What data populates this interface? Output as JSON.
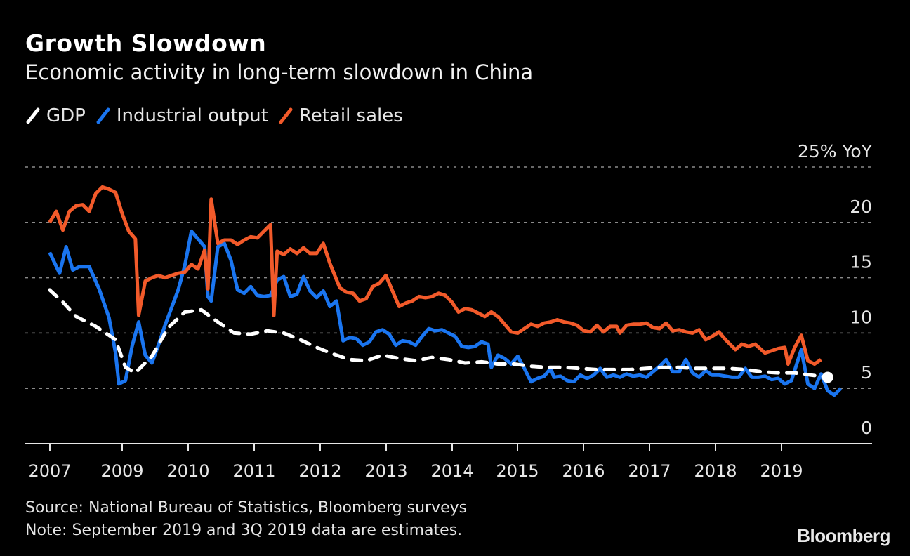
{
  "header": {
    "title": "Growth Slowdown",
    "subtitle": "Economic activity in long-term slowdown in China"
  },
  "legend": [
    {
      "label": "GDP",
      "color": "#ffffff"
    },
    {
      "label": "Industrial output",
      "color": "#1a75f0"
    },
    {
      "label": "Retail sales",
      "color": "#f25a2a"
    }
  ],
  "footer": {
    "source": "Source: National Bureau of Statistics, Bloomberg surveys",
    "note": "Note: September 2019 and 3Q 2019 data are estimates.",
    "brand": "Bloomberg"
  },
  "chart_data": {
    "type": "line",
    "title": "Growth Slowdown",
    "subtitle": "Economic activity in long-term slowdown in China",
    "xlabel": "",
    "ylabel": "% YoY",
    "y_unit_label": "25% YoY",
    "ylim": [
      0,
      25
    ],
    "yticks": [
      0,
      5,
      10,
      15,
      20,
      25
    ],
    "ytick_labels": [
      "0",
      "5",
      "10",
      "15",
      "20",
      "25% YoY"
    ],
    "xtick_labels": [
      "2007",
      "2009",
      "2010",
      "2011",
      "2012",
      "2013",
      "2014",
      "2015",
      "2016",
      "2017",
      "2018",
      "2019"
    ],
    "xtick_years": [
      2007.9,
      2009,
      2010,
      2011,
      2012,
      2013,
      2014,
      2015,
      2016,
      2017,
      2018,
      2019
    ],
    "grid": true,
    "legend_position": "top-left",
    "y_axis_side": "right",
    "series": [
      {
        "name": "GDP",
        "color": "#ffffff",
        "style": "dashed",
        "points": [
          [
            2007.9,
            13.9
          ],
          [
            2008.1,
            12.8
          ],
          [
            2008.3,
            11.5
          ],
          [
            2008.6,
            10.6
          ],
          [
            2008.9,
            9.4
          ],
          [
            2009.05,
            6.9
          ],
          [
            2009.2,
            6.4
          ],
          [
            2009.45,
            7.9
          ],
          [
            2009.7,
            10.5
          ],
          [
            2009.95,
            11.9
          ],
          [
            2010.2,
            12.1
          ],
          [
            2010.45,
            11.0
          ],
          [
            2010.7,
            10.0
          ],
          [
            2010.95,
            9.9
          ],
          [
            2011.2,
            10.2
          ],
          [
            2011.45,
            10.0
          ],
          [
            2011.7,
            9.4
          ],
          [
            2011.95,
            8.7
          ],
          [
            2012.2,
            8.1
          ],
          [
            2012.45,
            7.6
          ],
          [
            2012.7,
            7.5
          ],
          [
            2012.95,
            8.0
          ],
          [
            2013.2,
            7.7
          ],
          [
            2013.45,
            7.5
          ],
          [
            2013.7,
            7.8
          ],
          [
            2013.95,
            7.6
          ],
          [
            2014.2,
            7.3
          ],
          [
            2014.45,
            7.4
          ],
          [
            2014.7,
            7.2
          ],
          [
            2014.95,
            7.2
          ],
          [
            2015.2,
            7.0
          ],
          [
            2015.45,
            6.9
          ],
          [
            2015.7,
            6.9
          ],
          [
            2015.95,
            6.8
          ],
          [
            2016.2,
            6.7
          ],
          [
            2016.45,
            6.7
          ],
          [
            2016.7,
            6.7
          ],
          [
            2016.95,
            6.8
          ],
          [
            2017.2,
            6.9
          ],
          [
            2017.45,
            6.9
          ],
          [
            2017.7,
            6.8
          ],
          [
            2017.95,
            6.8
          ],
          [
            2018.2,
            6.8
          ],
          [
            2018.45,
            6.7
          ],
          [
            2018.7,
            6.5
          ],
          [
            2018.95,
            6.4
          ],
          [
            2019.2,
            6.4
          ],
          [
            2019.45,
            6.2
          ],
          [
            2019.7,
            6.0
          ]
        ]
      },
      {
        "name": "Industrial output",
        "color": "#1a75f0",
        "style": "solid",
        "points": [
          [
            2007.9,
            17.3
          ],
          [
            2008.05,
            15.4
          ],
          [
            2008.15,
            17.8
          ],
          [
            2008.25,
            15.7
          ],
          [
            2008.35,
            16.0
          ],
          [
            2008.5,
            16.0
          ],
          [
            2008.65,
            14.0
          ],
          [
            2008.8,
            11.4
          ],
          [
            2008.9,
            8.2
          ],
          [
            2008.95,
            5.4
          ],
          [
            2009.05,
            5.7
          ],
          [
            2009.15,
            8.8
          ],
          [
            2009.25,
            11.0
          ],
          [
            2009.35,
            8.0
          ],
          [
            2009.45,
            7.3
          ],
          [
            2009.55,
            8.9
          ],
          [
            2009.65,
            10.7
          ],
          [
            2009.75,
            12.3
          ],
          [
            2009.85,
            13.9
          ],
          [
            2009.95,
            16.1
          ],
          [
            2010.05,
            19.2
          ],
          [
            2010.15,
            18.5
          ],
          [
            2010.25,
            17.8
          ],
          [
            2010.3,
            13.3
          ],
          [
            2010.35,
            12.9
          ],
          [
            2010.45,
            17.8
          ],
          [
            2010.55,
            18.1
          ],
          [
            2010.65,
            16.6
          ],
          [
            2010.75,
            13.9
          ],
          [
            2010.85,
            13.6
          ],
          [
            2010.95,
            14.2
          ],
          [
            2011.05,
            13.4
          ],
          [
            2011.15,
            13.3
          ],
          [
            2011.25,
            13.4
          ],
          [
            2011.35,
            14.8
          ],
          [
            2011.45,
            15.1
          ],
          [
            2011.55,
            13.3
          ],
          [
            2011.65,
            13.5
          ],
          [
            2011.75,
            15.1
          ],
          [
            2011.85,
            13.8
          ],
          [
            2011.95,
            13.2
          ],
          [
            2012.05,
            13.8
          ],
          [
            2012.15,
            12.4
          ],
          [
            2012.25,
            12.9
          ],
          [
            2012.35,
            9.3
          ],
          [
            2012.45,
            9.6
          ],
          [
            2012.55,
            9.5
          ],
          [
            2012.65,
            8.9
          ],
          [
            2012.75,
            9.2
          ],
          [
            2012.85,
            10.1
          ],
          [
            2012.95,
            10.3
          ],
          [
            2013.05,
            9.9
          ],
          [
            2013.15,
            8.9
          ],
          [
            2013.25,
            9.3
          ],
          [
            2013.35,
            9.2
          ],
          [
            2013.45,
            8.9
          ],
          [
            2013.55,
            9.7
          ],
          [
            2013.65,
            10.4
          ],
          [
            2013.75,
            10.2
          ],
          [
            2013.85,
            10.3
          ],
          [
            2013.95,
            10.0
          ],
          [
            2014.05,
            9.7
          ],
          [
            2014.15,
            8.8
          ],
          [
            2014.25,
            8.7
          ],
          [
            2014.35,
            8.8
          ],
          [
            2014.45,
            9.2
          ],
          [
            2014.55,
            9.0
          ],
          [
            2014.6,
            6.9
          ],
          [
            2014.7,
            8.0
          ],
          [
            2014.8,
            7.7
          ],
          [
            2014.9,
            7.2
          ],
          [
            2015.0,
            7.9
          ],
          [
            2015.1,
            6.8
          ],
          [
            2015.2,
            5.6
          ],
          [
            2015.3,
            5.9
          ],
          [
            2015.4,
            6.1
          ],
          [
            2015.5,
            6.8
          ],
          [
            2015.55,
            6.0
          ],
          [
            2015.65,
            6.1
          ],
          [
            2015.75,
            5.7
          ],
          [
            2015.85,
            5.6
          ],
          [
            2015.95,
            6.2
          ],
          [
            2016.05,
            5.9
          ],
          [
            2016.15,
            6.2
          ],
          [
            2016.25,
            6.8
          ],
          [
            2016.35,
            6.0
          ],
          [
            2016.45,
            6.2
          ],
          [
            2016.55,
            6.0
          ],
          [
            2016.65,
            6.3
          ],
          [
            2016.75,
            6.1
          ],
          [
            2016.85,
            6.2
          ],
          [
            2016.95,
            6.0
          ],
          [
            2017.05,
            6.5
          ],
          [
            2017.15,
            7.0
          ],
          [
            2017.25,
            7.6
          ],
          [
            2017.35,
            6.5
          ],
          [
            2017.45,
            6.5
          ],
          [
            2017.55,
            7.6
          ],
          [
            2017.65,
            6.4
          ],
          [
            2017.75,
            6.0
          ],
          [
            2017.85,
            6.6
          ],
          [
            2017.95,
            6.2
          ],
          [
            2018.05,
            6.2
          ],
          [
            2018.15,
            6.1
          ],
          [
            2018.25,
            6.0
          ],
          [
            2018.35,
            6.0
          ],
          [
            2018.45,
            6.8
          ],
          [
            2018.55,
            6.0
          ],
          [
            2018.65,
            6.0
          ],
          [
            2018.75,
            6.1
          ],
          [
            2018.85,
            5.8
          ],
          [
            2018.95,
            5.9
          ],
          [
            2019.05,
            5.4
          ],
          [
            2019.15,
            5.7
          ],
          [
            2019.3,
            8.5
          ],
          [
            2019.4,
            5.4
          ],
          [
            2019.5,
            5.0
          ],
          [
            2019.6,
            6.3
          ],
          [
            2019.7,
            4.8
          ],
          [
            2019.8,
            4.4
          ],
          [
            2019.9,
            5.0
          ]
        ]
      },
      {
        "name": "Retail sales",
        "color": "#f25a2a",
        "style": "solid",
        "points": [
          [
            2007.9,
            20.0
          ],
          [
            2008.0,
            21.0
          ],
          [
            2008.1,
            19.3
          ],
          [
            2008.2,
            21.0
          ],
          [
            2008.3,
            21.5
          ],
          [
            2008.4,
            21.6
          ],
          [
            2008.5,
            21.0
          ],
          [
            2008.6,
            22.6
          ],
          [
            2008.7,
            23.2
          ],
          [
            2008.8,
            23.0
          ],
          [
            2008.9,
            22.7
          ],
          [
            2009.0,
            20.8
          ],
          [
            2009.1,
            19.2
          ],
          [
            2009.2,
            18.5
          ],
          [
            2009.25,
            11.6
          ],
          [
            2009.35,
            14.7
          ],
          [
            2009.45,
            15.0
          ],
          [
            2009.55,
            15.2
          ],
          [
            2009.65,
            15.0
          ],
          [
            2009.75,
            15.2
          ],
          [
            2009.85,
            15.4
          ],
          [
            2009.95,
            15.5
          ],
          [
            2010.05,
            16.2
          ],
          [
            2010.15,
            15.8
          ],
          [
            2010.25,
            17.5
          ],
          [
            2010.3,
            14.0
          ],
          [
            2010.35,
            22.1
          ],
          [
            2010.45,
            18.1
          ],
          [
            2010.55,
            18.4
          ],
          [
            2010.65,
            18.4
          ],
          [
            2010.75,
            18.0
          ],
          [
            2010.85,
            18.4
          ],
          [
            2010.95,
            18.7
          ],
          [
            2011.05,
            18.6
          ],
          [
            2011.15,
            19.2
          ],
          [
            2011.25,
            19.8
          ],
          [
            2011.3,
            11.6
          ],
          [
            2011.35,
            17.4
          ],
          [
            2011.45,
            17.1
          ],
          [
            2011.55,
            17.6
          ],
          [
            2011.65,
            17.2
          ],
          [
            2011.75,
            17.7
          ],
          [
            2011.85,
            17.2
          ],
          [
            2011.95,
            17.2
          ],
          [
            2012.05,
            18.1
          ],
          [
            2012.15,
            16.3
          ],
          [
            2012.3,
            14.1
          ],
          [
            2012.4,
            13.7
          ],
          [
            2012.5,
            13.6
          ],
          [
            2012.6,
            12.9
          ],
          [
            2012.7,
            13.1
          ],
          [
            2012.8,
            14.2
          ],
          [
            2012.9,
            14.5
          ],
          [
            2013.0,
            15.2
          ],
          [
            2013.1,
            13.8
          ],
          [
            2013.2,
            12.4
          ],
          [
            2013.3,
            12.7
          ],
          [
            2013.4,
            12.9
          ],
          [
            2013.5,
            13.3
          ],
          [
            2013.6,
            13.2
          ],
          [
            2013.7,
            13.3
          ],
          [
            2013.8,
            13.6
          ],
          [
            2013.9,
            13.4
          ],
          [
            2014.0,
            12.8
          ],
          [
            2014.1,
            11.9
          ],
          [
            2014.2,
            12.2
          ],
          [
            2014.3,
            12.1
          ],
          [
            2014.4,
            11.8
          ],
          [
            2014.5,
            11.5
          ],
          [
            2014.6,
            11.9
          ],
          [
            2014.7,
            11.5
          ],
          [
            2014.8,
            10.8
          ],
          [
            2014.9,
            10.1
          ],
          [
            2015.0,
            10.0
          ],
          [
            2015.1,
            10.4
          ],
          [
            2015.2,
            10.8
          ],
          [
            2015.3,
            10.6
          ],
          [
            2015.4,
            10.9
          ],
          [
            2015.5,
            11.0
          ],
          [
            2015.6,
            11.2
          ],
          [
            2015.7,
            11.0
          ],
          [
            2015.8,
            10.9
          ],
          [
            2015.9,
            10.7
          ],
          [
            2016.0,
            10.2
          ],
          [
            2016.1,
            10.1
          ],
          [
            2016.2,
            10.7
          ],
          [
            2016.3,
            10.1
          ],
          [
            2016.4,
            10.6
          ],
          [
            2016.5,
            10.6
          ],
          [
            2016.55,
            10.0
          ],
          [
            2016.65,
            10.7
          ],
          [
            2016.75,
            10.8
          ],
          [
            2016.85,
            10.8
          ],
          [
            2016.95,
            10.9
          ],
          [
            2017.05,
            10.5
          ],
          [
            2017.15,
            10.4
          ],
          [
            2017.25,
            10.9
          ],
          [
            2017.35,
            10.2
          ],
          [
            2017.45,
            10.3
          ],
          [
            2017.55,
            10.1
          ],
          [
            2017.65,
            10.0
          ],
          [
            2017.75,
            10.3
          ],
          [
            2017.85,
            9.4
          ],
          [
            2017.95,
            9.7
          ],
          [
            2018.05,
            10.1
          ],
          [
            2018.15,
            9.4
          ],
          [
            2018.3,
            8.5
          ],
          [
            2018.4,
            9.0
          ],
          [
            2018.5,
            8.8
          ],
          [
            2018.6,
            9.0
          ],
          [
            2018.75,
            8.2
          ],
          [
            2018.85,
            8.4
          ],
          [
            2018.95,
            8.6
          ],
          [
            2019.05,
            8.7
          ],
          [
            2019.1,
            7.2
          ],
          [
            2019.2,
            8.7
          ],
          [
            2019.3,
            9.8
          ],
          [
            2019.4,
            7.5
          ],
          [
            2019.5,
            7.2
          ],
          [
            2019.6,
            7.6
          ]
        ]
      }
    ],
    "last_point_marker": {
      "series": "GDP",
      "value": 6.0
    }
  }
}
